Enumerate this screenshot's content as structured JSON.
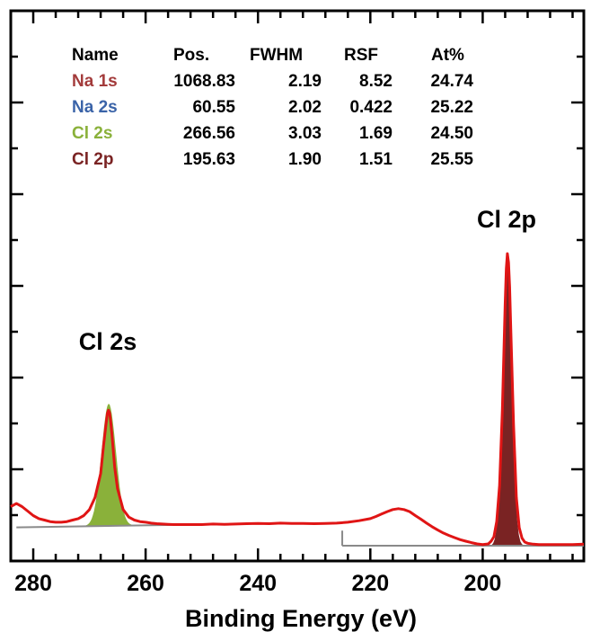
{
  "chart_data": {
    "type": "line",
    "title": "",
    "xlabel": "Binding Energy (eV)",
    "ylabel": "",
    "x_reversed": true,
    "xlim": [
      284,
      182
    ],
    "ylim": [
      0,
      1
    ],
    "x_ticks": [
      280,
      260,
      240,
      220,
      200
    ],
    "table": {
      "headers": [
        "Name",
        "Pos.",
        "FWHM",
        "RSF",
        "At%"
      ],
      "rows": [
        {
          "name": "Na 1s",
          "pos": "1068.83",
          "fwhm": "2.19",
          "rsf": "8.52",
          "at": "24.74",
          "color": "#a33b3b"
        },
        {
          "name": "Na 2s",
          "pos": "60.55",
          "fwhm": "2.02",
          "rsf": "0.422",
          "at": "25.22",
          "color": "#3a63a8"
        },
        {
          "name": "Cl 2s",
          "pos": "266.56",
          "fwhm": "3.03",
          "rsf": "1.69",
          "at": "24.50",
          "color": "#8ab13a"
        },
        {
          "name": "Cl 2p",
          "pos": "195.63",
          "fwhm": "1.90",
          "rsf": "1.51",
          "at": "25.55",
          "color": "#7a2323"
        }
      ]
    },
    "annotations": [
      {
        "text": "Cl 2s",
        "x": 266.56
      },
      {
        "text": "Cl 2p",
        "x": 195.63
      }
    ],
    "series": [
      {
        "name": "Cl 2s",
        "kind": "peak-fill",
        "color": "#8ab13a",
        "center": 266.56,
        "fwhm": 3.03,
        "height": 0.406,
        "baseline_x": [
          283,
          251
        ],
        "baseline_y": [
          0.061,
          0.07
        ]
      },
      {
        "name": "Cl 2p",
        "kind": "peak-fill",
        "color": "#7a2323",
        "center": 195.63,
        "fwhm": 1.9,
        "height": 0.965,
        "baseline_x": [
          225,
          182
        ],
        "baseline_y": [
          0.0,
          0.0
        ]
      },
      {
        "name": "envelope",
        "kind": "line",
        "color": "#e01515",
        "x": [
          284,
          283,
          282,
          281,
          280,
          279,
          278,
          277,
          276,
          275,
          274,
          273,
          272,
          271,
          270,
          269,
          268,
          267.5,
          267,
          266.8,
          266.6,
          266.4,
          266.2,
          266,
          265.5,
          265,
          264,
          263,
          262,
          261,
          260,
          259,
          258,
          257,
          256,
          255,
          254,
          252,
          250,
          248,
          246,
          244,
          242,
          240,
          238,
          236,
          234,
          232,
          230,
          228,
          226,
          224,
          222,
          220,
          219,
          218,
          217,
          216,
          215,
          214,
          213,
          212,
          211,
          210,
          209,
          208,
          207,
          206,
          205,
          204,
          203,
          202,
          201,
          200,
          199,
          198.5,
          198,
          197.5,
          197,
          196.5,
          196,
          195.8,
          195.6,
          195.4,
          195.2,
          195,
          194.5,
          194,
          193.5,
          193,
          192.5,
          192,
          191,
          190,
          188,
          186,
          184,
          182
        ],
        "y": [
          0.13,
          0.14,
          0.13,
          0.115,
          0.1,
          0.09,
          0.085,
          0.08,
          0.078,
          0.078,
          0.08,
          0.085,
          0.09,
          0.1,
          0.12,
          0.16,
          0.24,
          0.33,
          0.41,
          0.44,
          0.45,
          0.44,
          0.41,
          0.37,
          0.26,
          0.19,
          0.12,
          0.095,
          0.085,
          0.08,
          0.078,
          0.075,
          0.073,
          0.072,
          0.071,
          0.07,
          0.07,
          0.07,
          0.07,
          0.072,
          0.071,
          0.072,
          0.073,
          0.074,
          0.073,
          0.075,
          0.074,
          0.074,
          0.073,
          0.074,
          0.075,
          0.078,
          0.083,
          0.09,
          0.097,
          0.105,
          0.113,
          0.12,
          0.123,
          0.12,
          0.113,
          0.1,
          0.088,
          0.075,
          0.063,
          0.052,
          0.042,
          0.034,
          0.027,
          0.02,
          0.015,
          0.01,
          0.006,
          0.004,
          0.006,
          0.015,
          0.03,
          0.08,
          0.2,
          0.45,
          0.8,
          0.92,
          0.97,
          0.94,
          0.86,
          0.72,
          0.4,
          0.16,
          0.06,
          0.025,
          0.012,
          0.008,
          0.005,
          0.004,
          0.004,
          0.004,
          0.004,
          0.005
        ]
      }
    ]
  }
}
